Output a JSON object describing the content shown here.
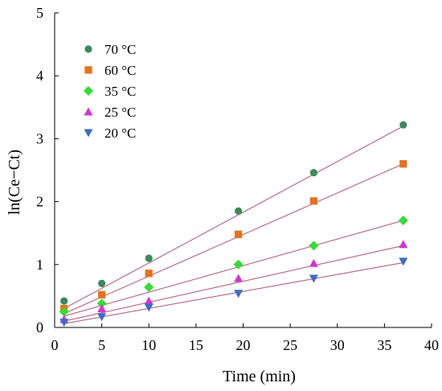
{
  "chart_data": {
    "type": "scatter",
    "title": "",
    "xlabel": "Time (min)",
    "ylabel": "ln(Ce−Ct)",
    "xlim": [
      0,
      40
    ],
    "ylim": [
      0,
      5
    ],
    "xticks": [
      0,
      5,
      10,
      15,
      20,
      25,
      30,
      35,
      40
    ],
    "yticks": [
      0,
      1,
      2,
      3,
      4,
      5
    ],
    "grid": false,
    "legend_position": "top-left",
    "fit_line_color": "#b5637c",
    "series": [
      {
        "name": "70 °C",
        "marker": "circle",
        "color": "#3a8a5c",
        "x": [
          1,
          5,
          10,
          19.5,
          27.5,
          37
        ],
        "y": [
          0.42,
          0.7,
          1.1,
          1.85,
          2.46,
          3.22
        ],
        "fit": [
          0.3,
          3.2
        ]
      },
      {
        "name": "60 °C",
        "marker": "square",
        "color": "#e8711c",
        "x": [
          1,
          5,
          10,
          19.5,
          27.5,
          37
        ],
        "y": [
          0.3,
          0.52,
          0.86,
          1.48,
          2.01,
          2.6
        ],
        "fit": [
          0.22,
          2.6
        ]
      },
      {
        "name": "35 °C",
        "marker": "diamond",
        "color": "#33dd33",
        "x": [
          1,
          5,
          10,
          19.5,
          27.5,
          37
        ],
        "y": [
          0.25,
          0.38,
          0.64,
          1.0,
          1.3,
          1.7
        ],
        "fit": [
          0.18,
          1.7
        ]
      },
      {
        "name": "25 °C",
        "marker": "triangle-up",
        "color": "#d633d6",
        "x": [
          1,
          5,
          10,
          19.5,
          27.5,
          37
        ],
        "y": [
          0.13,
          0.3,
          0.42,
          0.78,
          1.02,
          1.32
        ],
        "fit": [
          0.1,
          1.3
        ]
      },
      {
        "name": "20 °C",
        "marker": "triangle-down",
        "color": "#3b6cc8",
        "x": [
          1,
          5,
          10,
          19.5,
          27.5,
          37
        ],
        "y": [
          0.08,
          0.17,
          0.32,
          0.54,
          0.78,
          1.05
        ],
        "fit": [
          0.06,
          1.03
        ]
      }
    ]
  }
}
